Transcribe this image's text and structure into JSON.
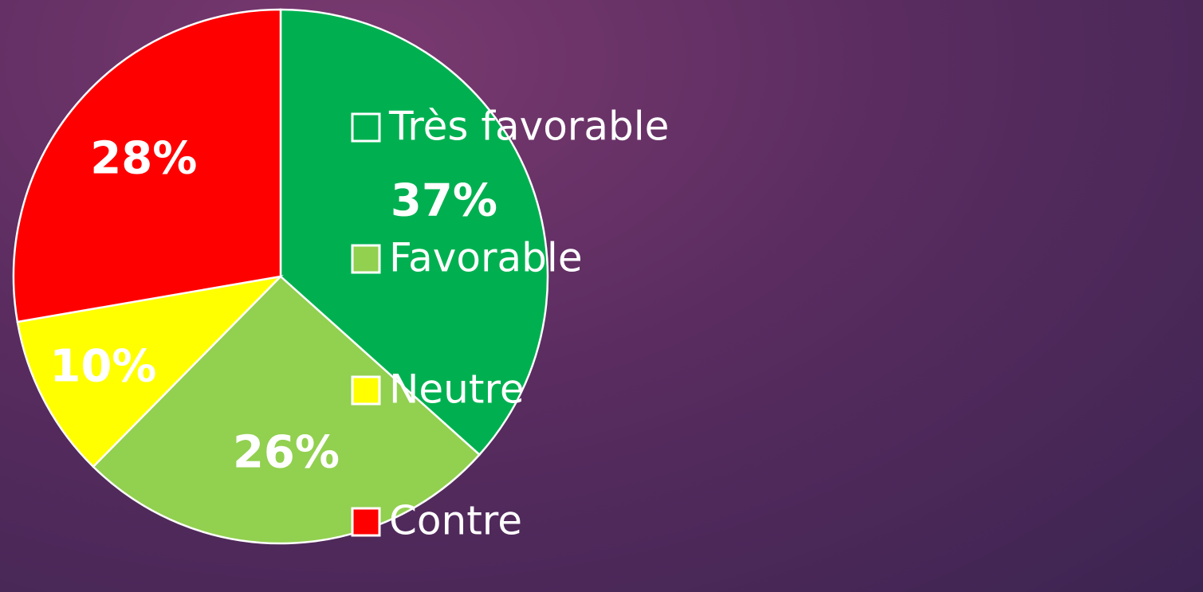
{
  "chart_data": {
    "type": "pie",
    "categories": [
      "Très favorable",
      "Favorable",
      "Neutre",
      "Contre"
    ],
    "values": [
      37,
      26,
      10,
      28
    ],
    "value_labels": [
      "37%",
      "26%",
      "10%",
      "28%"
    ],
    "colors": [
      "#00b050",
      "#92d050",
      "#ffff00",
      "#ff0000"
    ],
    "legend": "right"
  }
}
